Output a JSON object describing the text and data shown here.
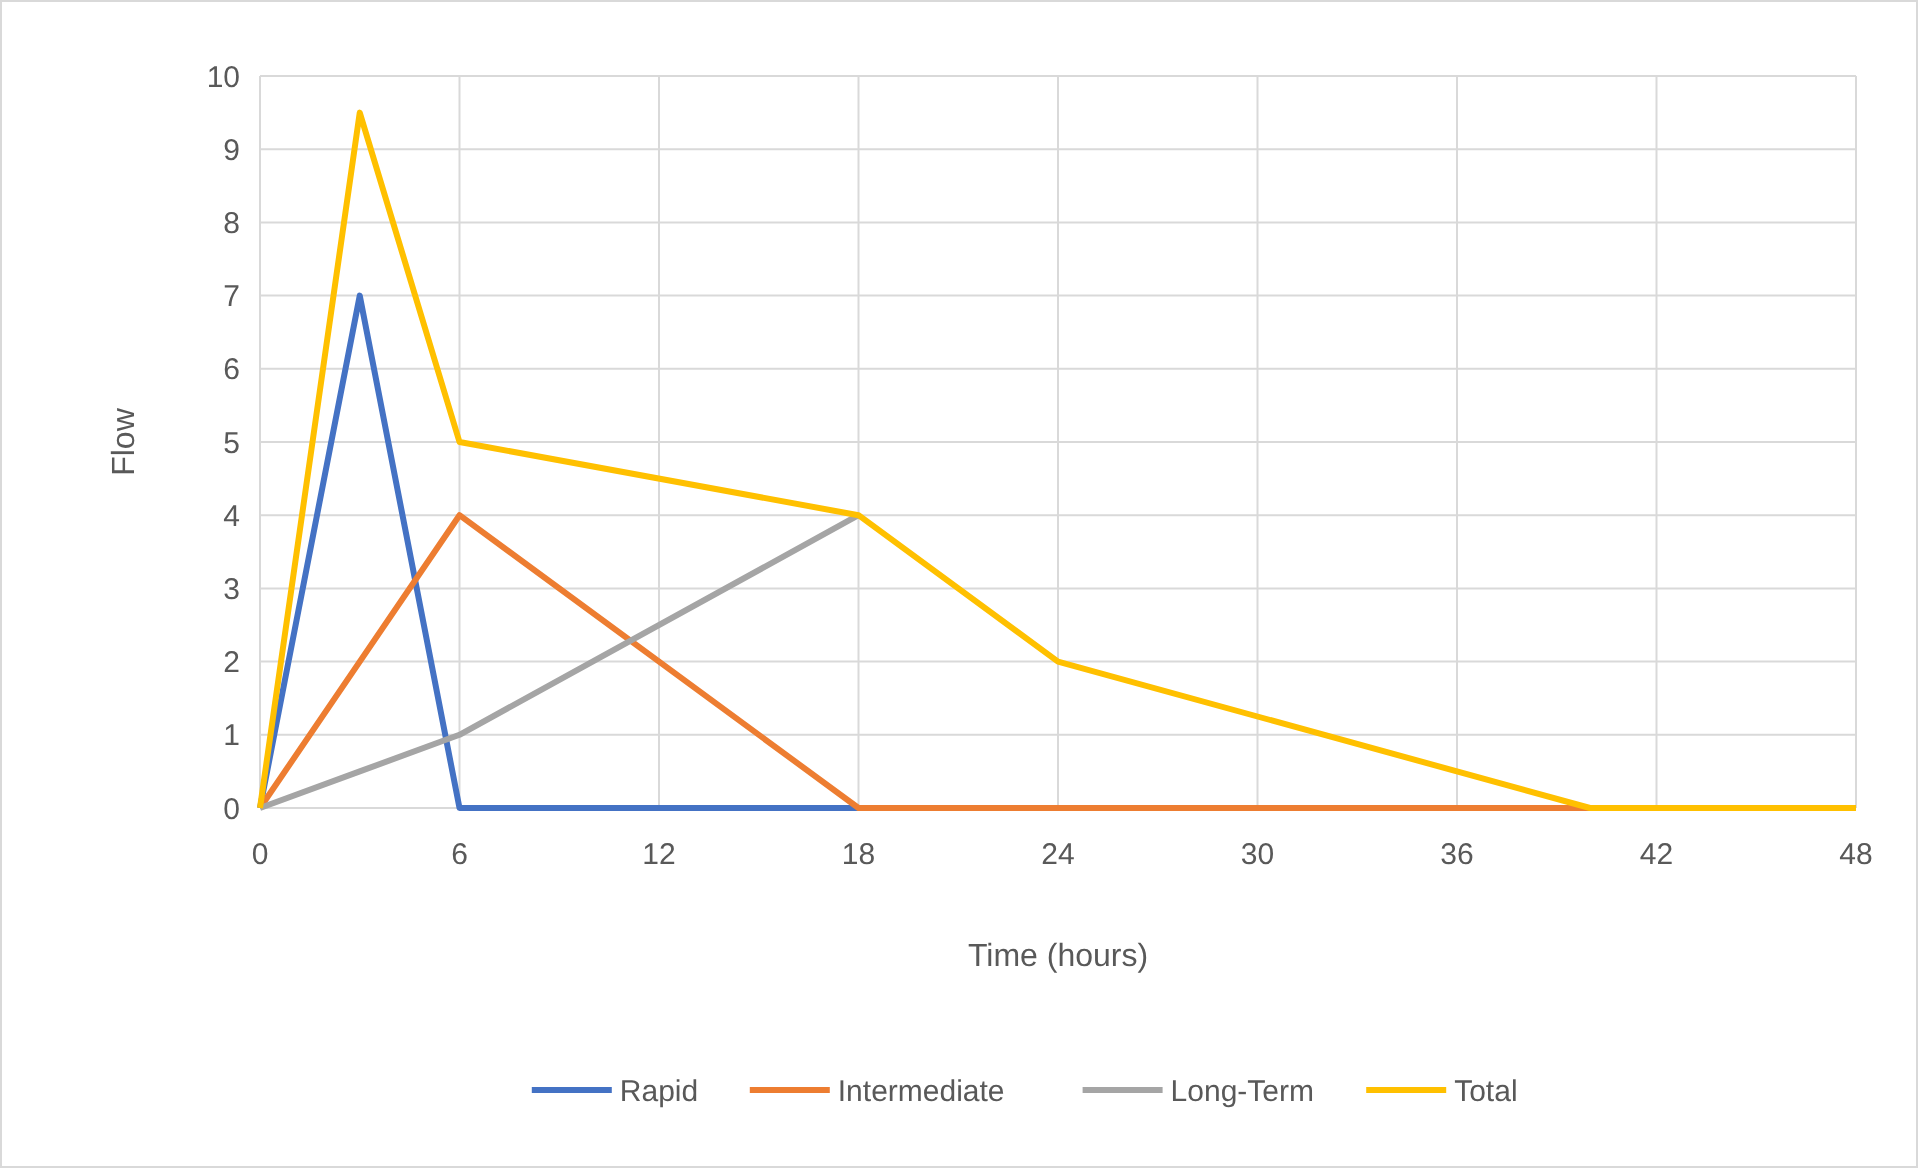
{
  "chart_data": {
    "type": "line",
    "xlabel": "Time (hours)",
    "ylabel": "Flow",
    "x": [
      0,
      3,
      6,
      18,
      24,
      40,
      48
    ],
    "series": [
      {
        "name": "Rapid",
        "color": "#4472c4",
        "values": [
          0,
          7,
          0,
          0,
          null,
          null,
          null
        ]
      },
      {
        "name": "Intermediate",
        "color": "#ed7d31",
        "values": [
          0,
          2,
          4,
          0,
          0,
          0,
          null
        ]
      },
      {
        "name": "Long-Term",
        "color": "#a5a5a5",
        "values": [
          0,
          0.5,
          1,
          4,
          null,
          null,
          null
        ]
      },
      {
        "name": "Total",
        "color": "#ffc000",
        "values": [
          0,
          9.5,
          5,
          4,
          2,
          0,
          0
        ]
      }
    ],
    "xlim": [
      0,
      48
    ],
    "xticks": [
      0,
      6,
      12,
      18,
      24,
      30,
      36,
      42,
      48
    ],
    "ylim": [
      0,
      10
    ],
    "yticks": [
      0,
      1,
      2,
      3,
      4,
      5,
      6,
      7,
      8,
      9,
      10
    ],
    "grid": true,
    "legend": "bottom",
    "marker": "none",
    "line_style": "solid"
  }
}
